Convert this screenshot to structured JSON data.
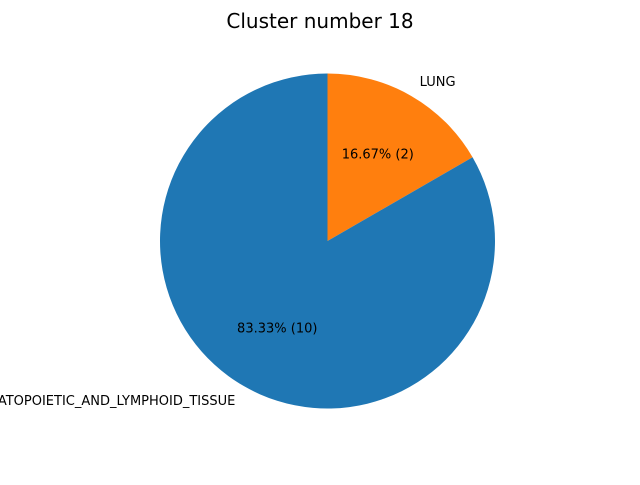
{
  "chart_data": {
    "type": "pie",
    "title": "Cluster number 18",
    "slices": [
      {
        "label": "LUNG",
        "value": 2,
        "percent_label": "16.67%  (2)",
        "color": "#ff7f0e"
      },
      {
        "label": "HAEMATOPOIETIC_AND_LYMPHOID_TISSUE",
        "value": 10,
        "percent_label": "83.33%  (10)",
        "color": "#1f77b4"
      }
    ],
    "start": "top",
    "direction": "clockwise",
    "legend": "none"
  }
}
